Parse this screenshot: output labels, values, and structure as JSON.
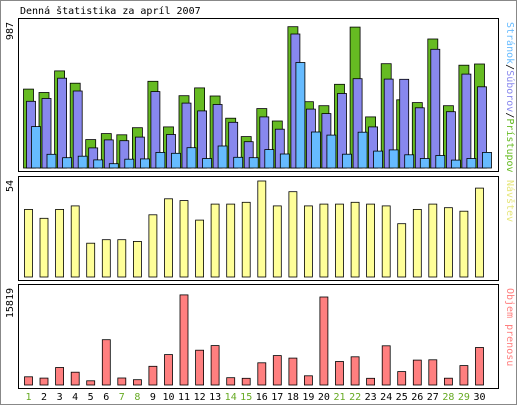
{
  "chart_data": {
    "type": "bar",
    "title": "Denná štatistika za apríl 2007",
    "days": [
      "1",
      "2",
      "3",
      "4",
      "5",
      "6",
      "7",
      "8",
      "9",
      "10",
      "11",
      "12",
      "13",
      "14",
      "15",
      "16",
      "17",
      "18",
      "19",
      "20",
      "21",
      "22",
      "23",
      "24",
      "25",
      "26",
      "27",
      "28",
      "29",
      "30"
    ],
    "weekend_days": [
      "1",
      "7",
      "8",
      "14",
      "15",
      "21",
      "22",
      "28",
      "29"
    ],
    "colors": {
      "pristupov": "#66bb22",
      "suborov": "#8888ee",
      "stranok": "#66bbff",
      "navstev": "#ffff99",
      "objem": "#ff7f7f",
      "weekday_label": "#000000",
      "weekend_label": "#66aa22"
    },
    "panels": [
      {
        "id": "hits",
        "max_label": "987",
        "legend": [
          {
            "text": "Stránok",
            "color": "#66bbff"
          },
          {
            "text": "/",
            "color": "#000000"
          },
          {
            "text": "Súborov",
            "color": "#8888ee"
          },
          {
            "text": "/",
            "color": "#000000"
          },
          {
            "text": "Prístupov",
            "color": "#66bb22"
          }
        ],
        "ymax": 987,
        "series": [
          {
            "name": "Prístupov",
            "values": [
              537,
              514,
              661,
              577,
              193,
              234,
              226,
              274,
              590,
              280,
              492,
              545,
              490,
              339,
              214,
              404,
              320,
              962,
              451,
              424,
              570,
              959,
              348,
              710,
              464,
              445,
              878,
              424,
              700,
              708
            ]
          },
          {
            "name": "Súborov",
            "values": [
              454,
              473,
              611,
              524,
              137,
              191,
              186,
              210,
              520,
              228,
              442,
              389,
              432,
              311,
              179,
              348,
              264,
              912,
              401,
              370,
              507,
              608,
              280,
              605,
              604,
              410,
              808,
              383,
              639,
              553
            ]
          },
          {
            "name": "Stránok",
            "values": [
              282,
              93,
              70,
              80,
              55,
              29,
              60,
              62,
              106,
              100,
              138,
              65,
              150,
              73,
              70,
              125,
              95,
              718,
              245,
              224,
              94,
              244,
              115,
              123,
              90,
              65,
              85,
              54,
              65,
              106
            ]
          }
        ]
      },
      {
        "id": "visits",
        "max_label": "54",
        "legend": [
          {
            "text": "Návštev",
            "color": "#e6e67a"
          }
        ],
        "ymax": 54,
        "series": [
          {
            "name": "Návštev",
            "values": [
              38,
              33,
              38,
              40,
              19,
              21,
              21,
              20,
              35,
              44,
              43,
              32,
              41,
              41,
              42,
              54,
              40,
              48,
              40,
              41,
              41,
              42,
              41,
              40,
              30,
              38,
              41,
              39,
              37,
              50
            ]
          }
        ]
      },
      {
        "id": "volume",
        "max_label": "15819",
        "legend": [
          {
            "text": "Objem prenosu",
            "color": "#ff7f7f"
          }
        ],
        "ymax": 15819,
        "series": [
          {
            "name": "Objem prenosu",
            "values": [
              1345,
              1141,
              2879,
              2109,
              695,
              7464,
              1148,
              868,
              3085,
              5009,
              14846,
              5731,
              6497,
              1211,
              1106,
              3663,
              4843,
              4433,
              1518,
              14500,
              3870,
              4640,
              1100,
              6453,
              2200,
              4102,
              4150,
              1114,
              3200,
              6177
            ]
          }
        ]
      }
    ]
  }
}
